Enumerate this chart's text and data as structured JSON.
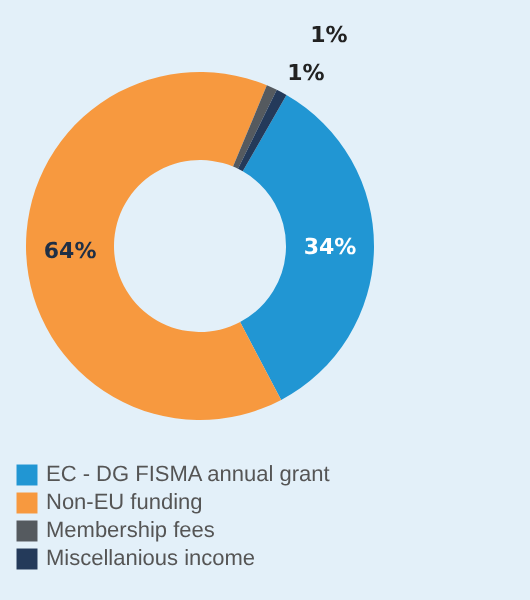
{
  "chart_data": {
    "type": "donut",
    "categories": [
      "EC - DG FISMA annual grant",
      "Non-EU funding",
      "Membership fees",
      "Miscellanious income"
    ],
    "values": [
      34,
      64,
      1,
      1
    ],
    "colors": [
      "#2196d3",
      "#f7993f",
      "#555a5f",
      "#243a5a"
    ],
    "value_labels": [
      "34%",
      "64%",
      "1%",
      "1%"
    ],
    "legend": "bottom left"
  }
}
